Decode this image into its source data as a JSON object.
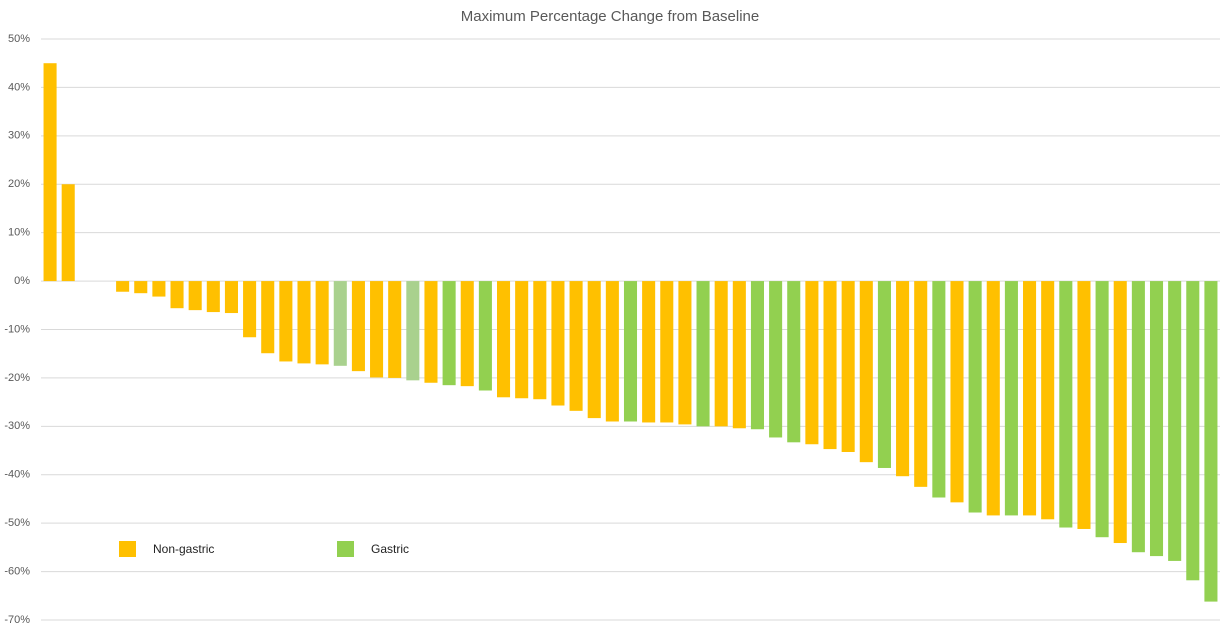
{
  "chart_data": {
    "type": "bar",
    "title": "Maximum Percentage Change from Baseline",
    "values": [
      45,
      20,
      null,
      null,
      -2.2,
      -2.5,
      -3.2,
      -5.6,
      -6,
      -6.4,
      -6.6,
      -11.6,
      -14.9,
      -16.6,
      -17,
      -17.2,
      -17.5,
      -18.6,
      -19.9,
      -20,
      -20.5,
      -21,
      -21.5,
      -21.7,
      -22.6,
      -24,
      -24.2,
      -24.4,
      -25.7,
      -26.8,
      -28.3,
      -29,
      -29,
      -29.2,
      -29.2,
      -29.6,
      -30,
      -30,
      -30.4,
      -30.6,
      -32.3,
      -33.3,
      -33.7,
      -34.7,
      -35.3,
      -37.4,
      -38.6,
      -40.3,
      -42.5,
      -44.7,
      -45.7,
      -47.8,
      -48.4,
      -48.4,
      -48.4,
      -49.2,
      -50.9,
      -51.2,
      -52.9,
      -54.1,
      -56,
      -56.8,
      -57.8,
      -61.8,
      -66.2
    ],
    "colors": [
      "#ffc000",
      "#ffc000",
      null,
      null,
      "#ffc000",
      "#ffc000",
      "#ffc000",
      "#ffc000",
      "#ffc000",
      "#ffc000",
      "#ffc000",
      "#ffc000",
      "#ffc000",
      "#ffc000",
      "#ffc000",
      "#ffc000",
      "#a9d18e",
      "#ffc000",
      "#ffc000",
      "#ffc000",
      "#a9d18e",
      "#ffc000",
      "#92d050",
      "#ffc000",
      "#92d050",
      "#ffc000",
      "#ffc000",
      "#ffc000",
      "#ffc000",
      "#ffc000",
      "#ffc000",
      "#ffc000",
      "#92d050",
      "#ffc000",
      "#ffc000",
      "#ffc000",
      "#92d050",
      "#ffc000",
      "#ffc000",
      "#92d050",
      "#92d050",
      "#92d050",
      "#ffc000",
      "#ffc000",
      "#ffc000",
      "#ffc000",
      "#92d050",
      "#ffc000",
      "#ffc000",
      "#92d050",
      "#ffc000",
      "#92d050",
      "#ffc000",
      "#92d050",
      "#ffc000",
      "#ffc000",
      "#92d050",
      "#ffc000",
      "#92d050",
      "#ffc000",
      "#92d050",
      "#92d050",
      "#92d050",
      "#92d050",
      "#92d050"
    ],
    "legend": [
      {
        "name": "Non-gastric",
        "color": "#ffc000"
      },
      {
        "name": "Gastric",
        "color": "#92d050"
      }
    ],
    "ylim": [
      -70,
      50
    ],
    "yticks": [
      {
        "value": 50,
        "label": "50%"
      },
      {
        "value": 40,
        "label": "40%"
      },
      {
        "value": 30,
        "label": "30%"
      },
      {
        "value": 20,
        "label": "20%"
      },
      {
        "value": 10,
        "label": "10%"
      },
      {
        "value": 0,
        "label": "0%"
      },
      {
        "value": -10,
        "label": "-10%"
      },
      {
        "value": -20,
        "label": "-20%"
      },
      {
        "value": -30,
        "label": "-30%"
      },
      {
        "value": -40,
        "label": "-40%"
      },
      {
        "value": -50,
        "label": "-50%"
      },
      {
        "value": -60,
        "label": "-60%"
      },
      {
        "value": -70,
        "label": "-70%"
      }
    ],
    "grid": true
  }
}
